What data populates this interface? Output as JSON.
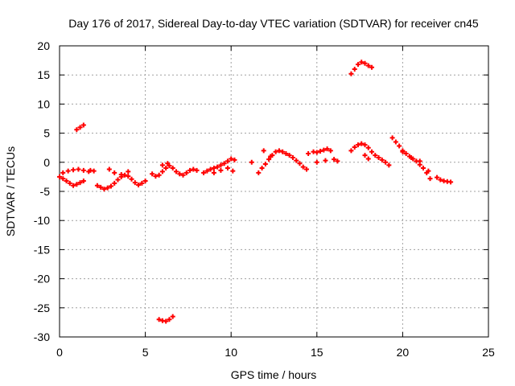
{
  "chart_data": {
    "type": "scatter",
    "title": "Day 176 of 2017, Sidereal Day-to-day VTEC variation (SDTVAR) for receiver cn45",
    "xlabel": "GPS time / hours",
    "ylabel": "SDTVAR / TECUs",
    "xlim": [
      0,
      25
    ],
    "ylim": [
      -30,
      20
    ],
    "x_ticks": [
      0,
      5,
      10,
      15,
      20,
      25
    ],
    "y_ticks": [
      -30,
      -25,
      -20,
      -15,
      -10,
      -5,
      0,
      5,
      10,
      15,
      20
    ],
    "x_tick_labels": [
      "0",
      "5",
      "10",
      "15",
      "20",
      "25"
    ],
    "y_tick_labels": [
      "-30",
      "-25",
      "-20",
      "-15",
      "-10",
      "-5",
      "0",
      "5",
      "10",
      "15",
      "20"
    ],
    "grid": true,
    "marker": "+",
    "series": [
      {
        "name": "SDTVAR",
        "color": "#ff0000",
        "x": [
          0.0,
          0.2,
          0.4,
          0.6,
          0.8,
          1.0,
          1.2,
          1.4,
          0.2,
          0.5,
          0.8,
          1.1,
          1.4,
          1.7,
          1.8,
          2.0,
          1.0,
          1.2,
          1.4,
          2.2,
          2.4,
          2.6,
          2.8,
          3.0,
          3.2,
          3.4,
          3.6,
          3.8,
          4.0,
          4.2,
          4.4,
          4.6,
          4.8,
          5.0,
          2.9,
          3.2,
          3.6,
          4.0,
          5.4,
          5.6,
          5.8,
          6.0,
          6.2,
          6.4,
          6.6,
          6.8,
          7.0,
          7.2,
          7.4,
          7.6,
          7.8,
          8.0,
          6.0,
          6.3,
          5.8,
          6.0,
          6.2,
          6.4,
          6.6,
          8.4,
          8.6,
          8.8,
          9.0,
          9.2,
          9.4,
          9.6,
          9.8,
          10.0,
          10.2,
          9.0,
          9.4,
          9.8,
          10.1,
          11.2,
          11.6,
          11.8,
          12.0,
          12.2,
          12.4,
          12.6,
          12.8,
          13.0,
          13.2,
          13.4,
          13.6,
          13.8,
          14.0,
          14.2,
          14.4,
          11.9,
          12.3,
          14.5,
          14.8,
          15.0,
          15.2,
          15.4,
          15.6,
          15.8,
          15.0,
          15.5,
          16.0,
          16.2,
          17.0,
          17.2,
          17.4,
          17.6,
          17.8,
          18.0,
          18.2,
          17.0,
          17.2,
          17.4,
          17.6,
          17.8,
          18.0,
          18.2,
          18.4,
          18.6,
          18.8,
          19.0,
          19.2,
          17.8,
          18.0,
          19.4,
          19.6,
          19.8,
          20.0,
          20.2,
          20.4,
          20.6,
          20.8,
          21.0,
          21.2,
          21.4,
          21.6,
          20.0,
          20.5,
          21.0,
          21.5,
          22.0,
          22.2,
          22.4,
          22.6,
          22.8
        ],
        "y": [
          -2.5,
          -2.8,
          -3.2,
          -3.6,
          -4.0,
          -3.8,
          -3.5,
          -3.2,
          -1.8,
          -1.5,
          -1.3,
          -1.2,
          -1.4,
          -1.6,
          -1.4,
          -1.5,
          5.6,
          6.0,
          6.4,
          -4.0,
          -4.3,
          -4.6,
          -4.4,
          -4.1,
          -3.6,
          -3.0,
          -2.5,
          -2.2,
          -2.4,
          -2.9,
          -3.5,
          -3.9,
          -3.6,
          -3.2,
          -1.2,
          -1.8,
          -2.1,
          -1.6,
          -2.0,
          -2.4,
          -2.2,
          -1.6,
          -1.0,
          -0.6,
          -1.0,
          -1.6,
          -2.0,
          -2.2,
          -1.8,
          -1.4,
          -1.2,
          -1.4,
          -0.5,
          -0.2,
          -27.0,
          -27.2,
          -27.3,
          -27.0,
          -26.5,
          -1.8,
          -1.5,
          -1.2,
          -1.0,
          -0.8,
          -0.5,
          -0.2,
          0.2,
          0.6,
          0.4,
          -1.8,
          -1.4,
          -1.0,
          -1.5,
          0.0,
          -1.8,
          -1.0,
          -0.3,
          0.5,
          1.2,
          1.8,
          2.0,
          1.8,
          1.5,
          1.2,
          0.8,
          0.3,
          -0.2,
          -0.8,
          -1.2,
          2.0,
          1.0,
          1.5,
          1.8,
          1.7,
          1.9,
          2.1,
          2.3,
          2.0,
          0.0,
          0.3,
          0.5,
          0.2,
          15.2,
          16.0,
          16.8,
          17.2,
          17.0,
          16.6,
          16.3,
          2.0,
          2.6,
          3.0,
          3.2,
          3.0,
          2.5,
          1.8,
          1.2,
          0.8,
          0.4,
          0.0,
          -0.5,
          1.2,
          0.6,
          4.2,
          3.5,
          2.8,
          2.0,
          1.5,
          1.0,
          0.6,
          0.2,
          -0.4,
          -1.0,
          -1.8,
          -2.8,
          1.8,
          0.8,
          0.2,
          -1.5,
          -2.6,
          -3.0,
          -3.2,
          -3.3,
          -3.4
        ]
      }
    ]
  }
}
